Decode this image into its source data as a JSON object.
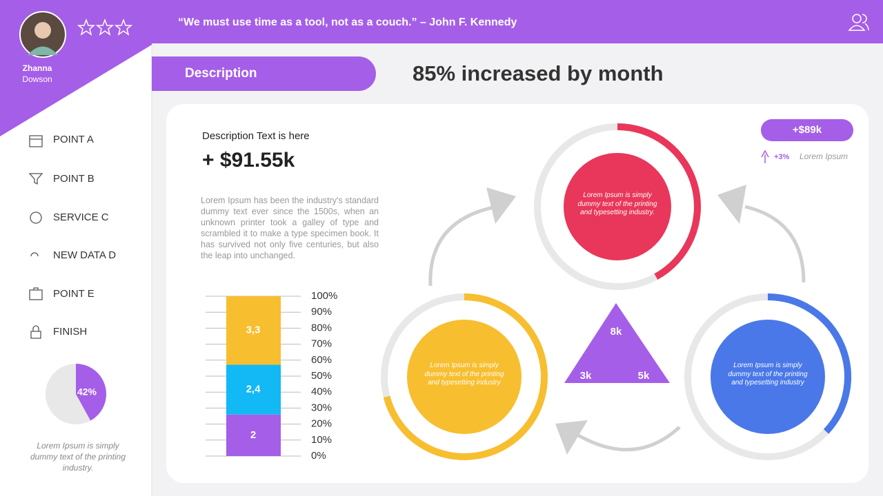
{
  "header": {
    "quote": "“We must use time as a tool, not as a couch.” – John F. Kennedy"
  },
  "profile": {
    "first_name": "Zhanna",
    "last_name": "Dowson"
  },
  "menu": [
    "POINT A",
    "POINT B",
    "SERVICE C",
    "NEW DATA D",
    "POINT E",
    "FINISH"
  ],
  "sidebar_pie": {
    "type": "pie",
    "value": 42,
    "value_label": "42%",
    "color": "#a55ee8",
    "caption": "Lorem Ipsum is simply dummy text of the printing industry."
  },
  "tab": "Description",
  "headline": "85% increased by month",
  "summary": {
    "label": "Description Text is here",
    "amount": "+ $91.55k",
    "body": "Lorem Ipsum has been the industry's standard dummy text ever since the 1500s, when an unknown printer took a galley of type and scrambled it to make a type specimen book. It has survived not only five centuries, but also the leap into unchanged."
  },
  "stacked_bar": {
    "type": "bar",
    "values": [
      2,
      2.4,
      3.3
    ],
    "value_labels": [
      "2",
      "2,4",
      "3,3"
    ],
    "colors": [
      "#a55ee8",
      "#12b9f5",
      "#f7be2f"
    ],
    "ylim": [
      0,
      7.7
    ],
    "yticks": [
      {
        "value": 0,
        "label": "0%"
      },
      {
        "value": 0.77,
        "label": "10%"
      },
      {
        "value": 1.54,
        "label": "20%"
      },
      {
        "value": 2.31,
        "label": "30%"
      },
      {
        "value": 3.08,
        "label": "40%"
      },
      {
        "value": 3.85,
        "label": "50%"
      },
      {
        "value": 4.62,
        "label": "60%"
      },
      {
        "value": 5.39,
        "label": "70%"
      },
      {
        "value": 6.16,
        "label": "80%"
      },
      {
        "value": 6.93,
        "label": "90%"
      },
      {
        "value": 7.7,
        "label": "100%"
      }
    ]
  },
  "rings": [
    {
      "progress": 42,
      "color": "#e8375a",
      "text": "Lorem Ipsum is simply dummy text of the printing and typesetting industry."
    },
    {
      "progress": 71,
      "color": "#f7be2f",
      "text": "Lorem Ipsum is simply dummy text of the printing and typesetting industry"
    },
    {
      "progress": 37,
      "color": "#4a78e8",
      "text": "Lorem Ipsum is simply dummy text of the printing and typesetting industry"
    }
  ],
  "triangle": {
    "top": "8k",
    "left": "3k",
    "right": "5k"
  },
  "badge": {
    "amount": "+$89k",
    "change": "+3%",
    "note": "Lorem Ipsum"
  }
}
